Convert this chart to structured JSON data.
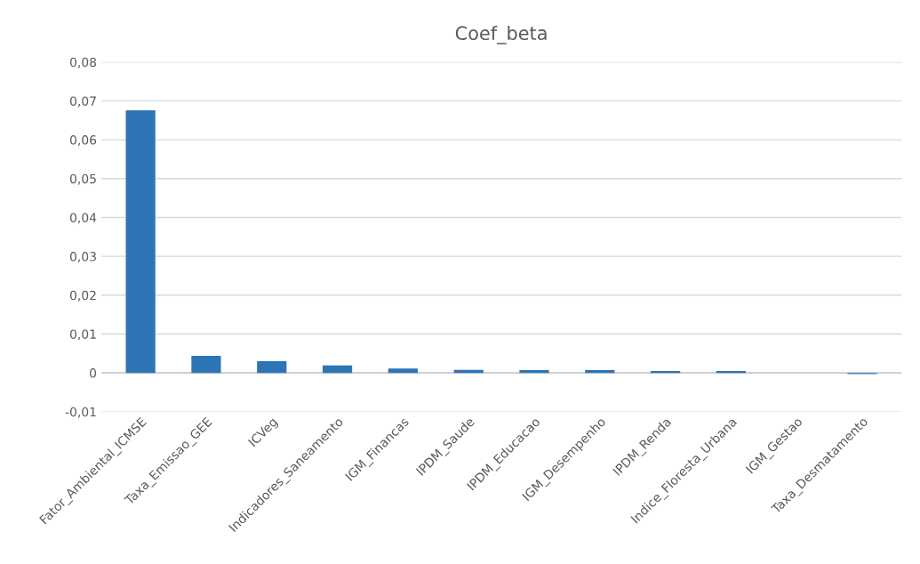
{
  "chart_data": {
    "type": "bar",
    "title": "Coef_beta",
    "categories": [
      "Fator_Ambiental_ICMSE",
      "Taxa_Emissao_GEE",
      "ICVeg",
      "Indicadores_Saneamento",
      "IGM_Financas",
      "IPDM_Saude",
      "IPDM_Educacao",
      "IGM_Desempenho",
      "IPDM_Renda",
      "Indice_Floresta_Urbana",
      "IGM_Gestao",
      "Taxa_Desmatamento"
    ],
    "values": [
      0.0676,
      0.0044,
      0.003,
      0.0019,
      0.0011,
      0.0008,
      0.0007,
      0.0007,
      0.0005,
      0.0005,
      0,
      -0.0003
    ],
    "color": "#2e75b6",
    "ylim": [
      -0.01,
      0.08
    ],
    "yticks": [
      {
        "value": -0.01,
        "label": "-0,01"
      },
      {
        "value": 0,
        "label": "0"
      },
      {
        "value": 0.01,
        "label": "0,01"
      },
      {
        "value": 0.02,
        "label": "0,02"
      },
      {
        "value": 0.03,
        "label": "0,03"
      },
      {
        "value": 0.04,
        "label": "0,04"
      },
      {
        "value": 0.05,
        "label": "0,05"
      },
      {
        "value": 0.06,
        "label": "0,06"
      },
      {
        "value": 0.07,
        "label": "0,07"
      },
      {
        "value": 0.08,
        "label": "0,08"
      }
    ],
    "grid": "y"
  }
}
